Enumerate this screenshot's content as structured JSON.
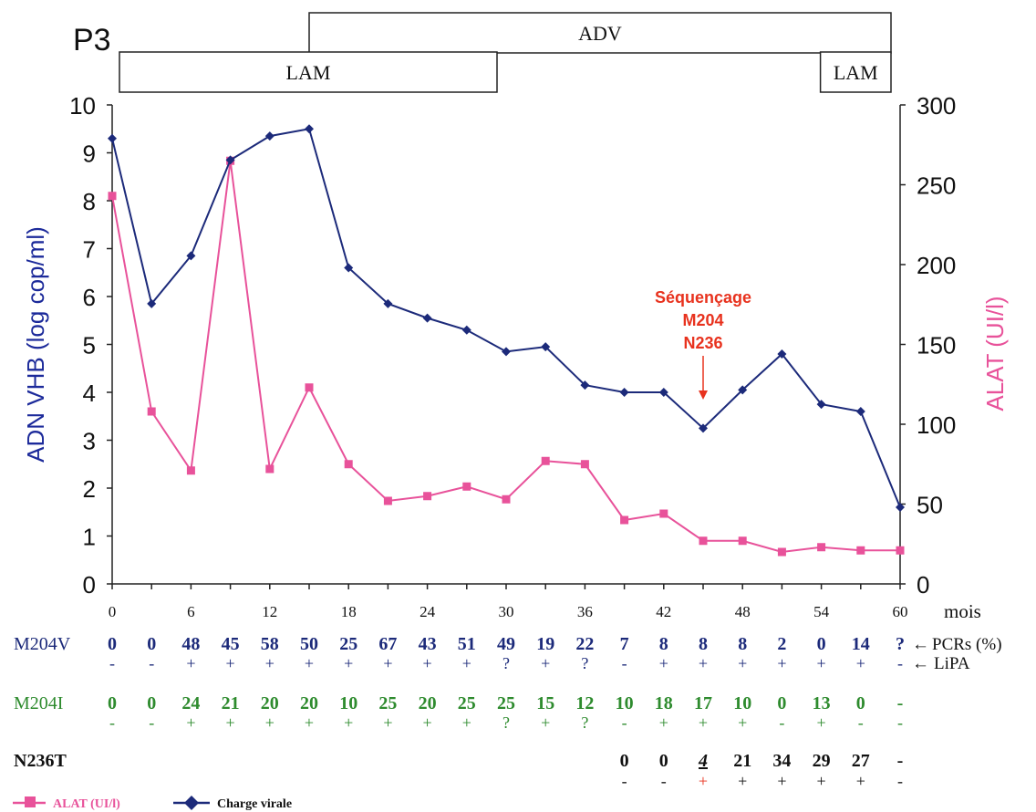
{
  "chart_data": {
    "type": "line",
    "title": "P3",
    "xlabel": "mois",
    "ylabel": "ADN VHB (log cop/ml)",
    "ylabel_right": "ALAT (UI/l)",
    "xlim": [
      0,
      60
    ],
    "ylim": [
      0,
      10
    ],
    "ylim_right": [
      0,
      300
    ],
    "x_ticks": [
      0,
      6,
      12,
      18,
      24,
      30,
      36,
      42,
      48,
      54,
      60
    ],
    "y_ticks": [
      0,
      1,
      2,
      3,
      4,
      5,
      6,
      7,
      8,
      9,
      10
    ],
    "y_ticks_right": [
      0,
      50,
      100,
      150,
      200,
      250,
      300
    ],
    "grid": false,
    "legend_position": "bottom-left",
    "series": [
      {
        "name": "ALAT (UI/l)",
        "axis": "right",
        "color": "#e8529a",
        "marker": "square",
        "x": [
          0,
          3,
          6,
          9,
          12,
          15,
          18,
          21,
          24,
          27,
          30,
          33,
          36,
          39,
          42,
          45,
          48,
          51,
          54,
          57,
          60
        ],
        "values": [
          243,
          108,
          71,
          265,
          72,
          123,
          75,
          52,
          55,
          61,
          53,
          77,
          75,
          40,
          44,
          27,
          27,
          20,
          23,
          21,
          21
        ]
      },
      {
        "name": "Charge virale",
        "axis": "left",
        "color": "#1c2a7a",
        "marker": "diamond",
        "x": [
          0,
          3,
          6,
          9,
          12,
          15,
          18,
          21,
          24,
          27,
          30,
          33,
          36,
          39,
          42,
          45,
          48,
          51,
          54,
          57,
          60
        ],
        "values": [
          9.3,
          5.85,
          6.85,
          8.85,
          9.35,
          9.5,
          6.6,
          5.85,
          5.55,
          5.3,
          4.85,
          4.95,
          4.15,
          4.0,
          4.0,
          3.25,
          4.05,
          4.8,
          3.75,
          3.6,
          1.6
        ]
      }
    ],
    "treatments": [
      {
        "label": "ADV",
        "start": 15,
        "end": 60,
        "row": 0
      },
      {
        "label": "LAM",
        "start": 0,
        "end": 30,
        "row": 1
      },
      {
        "label": "LAM",
        "start": 54,
        "end": 60,
        "row": 1
      }
    ],
    "annotation": {
      "lines": [
        "Séquençage",
        "M204",
        "N236"
      ],
      "x": 45,
      "color": "#e8321e"
    },
    "table": {
      "x": [
        0,
        3,
        6,
        9,
        12,
        15,
        18,
        21,
        24,
        27,
        30,
        33,
        36,
        39,
        42,
        45,
        48,
        51,
        54,
        57,
        60
      ],
      "rows": [
        {
          "label": "M204V",
          "color": "#1c2a7a",
          "values": [
            "0",
            "0",
            "48",
            "45",
            "58",
            "50",
            "25",
            "67",
            "43",
            "51",
            "49",
            "19",
            "22",
            "7",
            "8",
            "8",
            "8",
            "2",
            "0",
            "14",
            "?"
          ],
          "signs": [
            "-",
            "-",
            "+",
            "+",
            "+",
            "+",
            "+",
            "+",
            "+",
            "+",
            "?",
            "+",
            "?",
            "-",
            "+",
            "+",
            "+",
            "+",
            "+",
            "+",
            "-"
          ],
          "value_note": "PCRs (%)",
          "sign_note": "LiPA"
        },
        {
          "label": "M204I",
          "color": "#2e8b2e",
          "values": [
            "0",
            "0",
            "24",
            "21",
            "20",
            "20",
            "10",
            "25",
            "20",
            "25",
            "25",
            "15",
            "12",
            "10",
            "18",
            "17",
            "10",
            "0",
            "13",
            "0",
            "-"
          ],
          "signs": [
            "-",
            "-",
            "+",
            "+",
            "+",
            "+",
            "+",
            "+",
            "+",
            "+",
            "?",
            "+",
            "?",
            "-",
            "+",
            "+",
            "+",
            "-",
            "+",
            "-",
            "-"
          ]
        },
        {
          "label": "N236T",
          "color": "#111111",
          "values": [
            "",
            "",
            "",
            "",
            "",
            "",
            "",
            "",
            "",
            "",
            "",
            "",
            "",
            "0",
            "0",
            "4",
            "21",
            "34",
            "29",
            "27",
            "-"
          ],
          "signs": [
            "",
            "",
            "",
            "",
            "",
            "",
            "",
            "",
            "",
            "",
            "",
            "",
            "",
            "-",
            "-",
            "+",
            "+",
            "+",
            "+",
            "+",
            "-"
          ],
          "highlight_index": 15,
          "highlight_color": "#e8321e"
        }
      ]
    }
  }
}
